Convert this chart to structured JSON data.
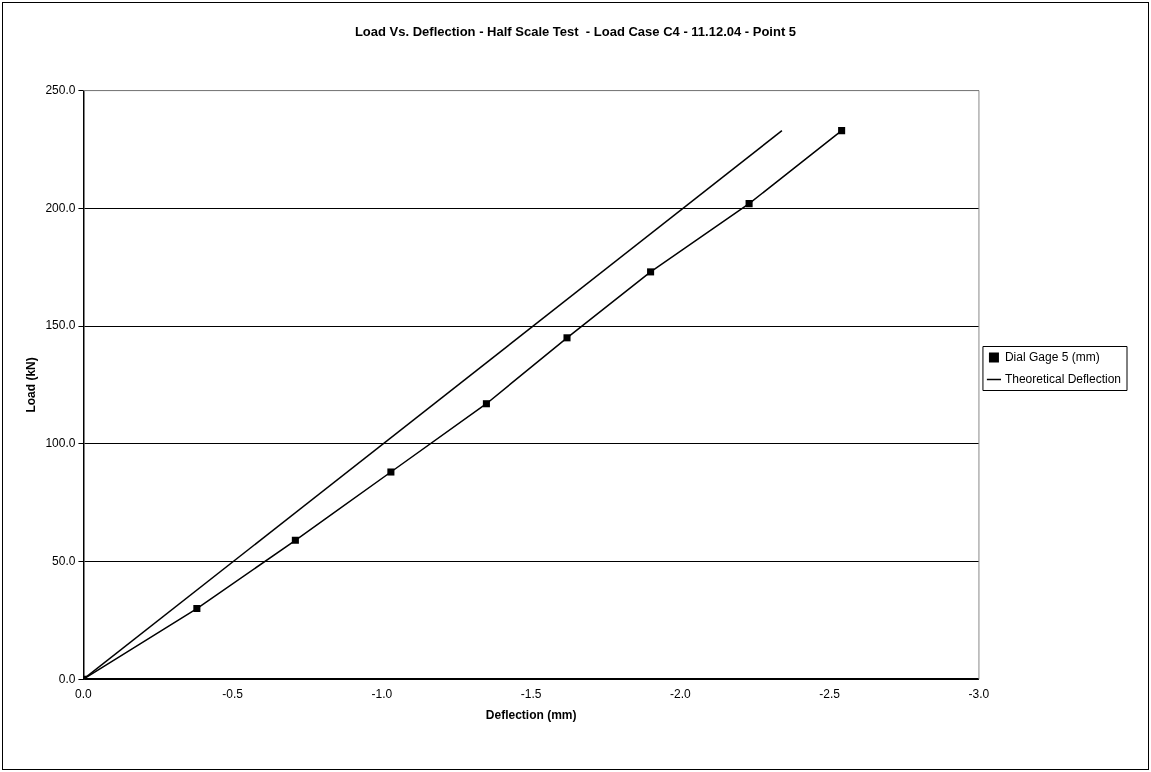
{
  "chart_data": {
    "type": "line",
    "title": "Load Vs. Deflection - Half Scale Test  - Load Case C4 - 11.12.04 - Point 5",
    "xlabel": "Deflection (mm)",
    "ylabel": "Load (kN)",
    "xlim": [
      0,
      -3
    ],
    "xticks": [
      {
        "value": 0,
        "label": "0.0"
      },
      {
        "value": -0.5,
        "label": "-0.5"
      },
      {
        "value": -1,
        "label": "-1.0"
      },
      {
        "value": -1.5,
        "label": "-1.5"
      },
      {
        "value": -2,
        "label": "-2.0"
      },
      {
        "value": -2.5,
        "label": "-2.5"
      },
      {
        "value": -3,
        "label": "-3.0"
      }
    ],
    "ylim": [
      0,
      250
    ],
    "yticks": [
      {
        "value": 0,
        "label": "0.0"
      },
      {
        "value": 50,
        "label": "50.0"
      },
      {
        "value": 100,
        "label": "100.0"
      },
      {
        "value": 150,
        "label": "150.0"
      },
      {
        "value": 200,
        "label": "200.0"
      },
      {
        "value": 250,
        "label": "250.0"
      }
    ],
    "grid": "y",
    "legend": "right",
    "line_style": "solid",
    "series": [
      {
        "name": "Dial Gage 5 (mm)",
        "color": "#000000",
        "marker": "square",
        "x": [
          0,
          -0.38,
          -0.71,
          -1.03,
          -1.35,
          -1.62,
          -1.9,
          -2.23,
          -2.54
        ],
        "values": [
          0,
          30,
          59,
          88,
          117,
          145,
          173,
          202,
          233
        ]
      },
      {
        "name": "Theoretical Deflection",
        "color": "#000000",
        "marker": "none",
        "x": [
          0,
          -2.34
        ],
        "values": [
          0,
          233
        ]
      }
    ]
  }
}
